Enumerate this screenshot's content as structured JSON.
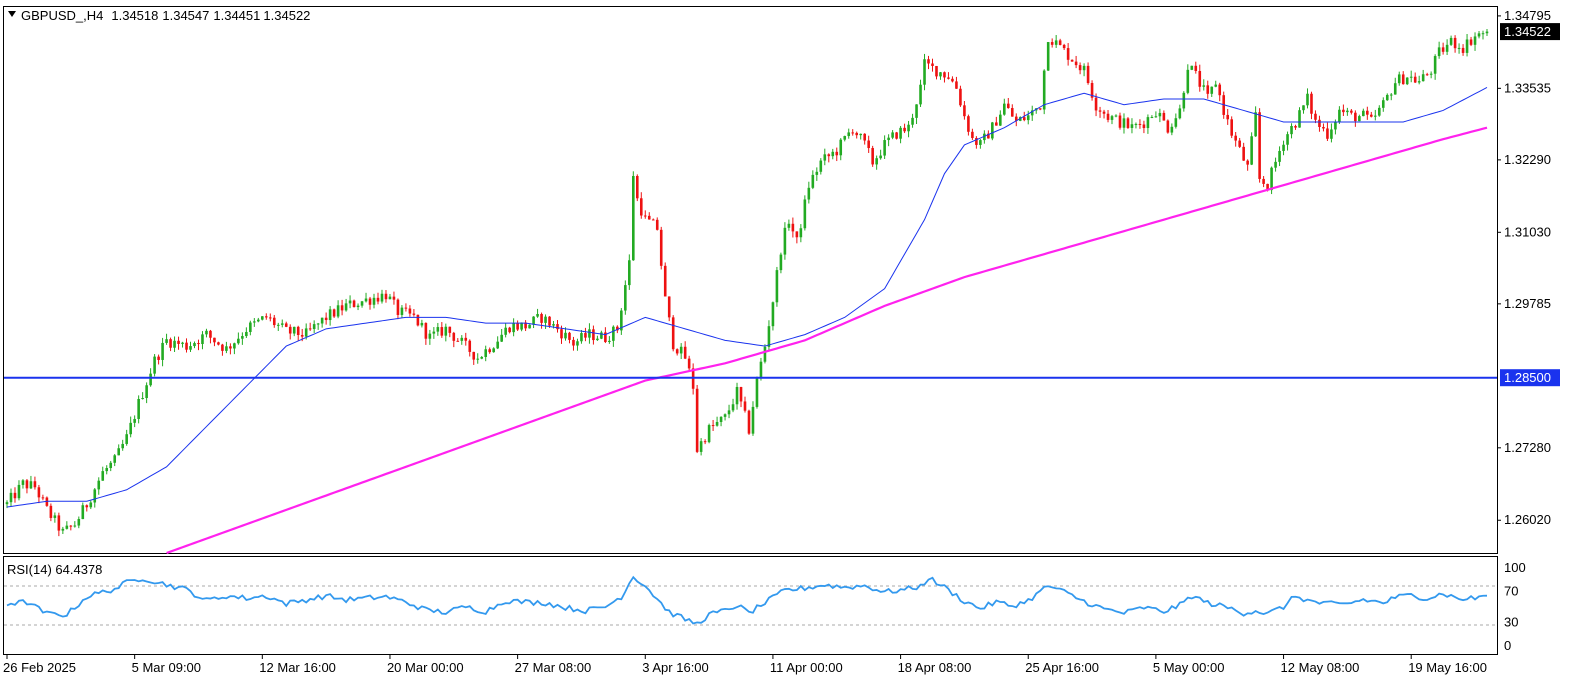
{
  "header": {
    "symbol": "GBPUSD_,H4",
    "open": "1.34518",
    "high": "1.34547",
    "low": "1.34451",
    "close": "1.34522"
  },
  "rsi_header": {
    "label": "RSI(14) 64.4378"
  },
  "current_price_label": "1.34522",
  "hline_label": "1.28500",
  "colors": {
    "bull": "#22aa22",
    "bear": "#ee1111",
    "ma_fast": "#1a33ee",
    "ma_slow": "#ff22ee",
    "hline": "#1a33ee",
    "rsi": "#3399ee",
    "frame": "#000000"
  },
  "chart_data": [
    {
      "type": "candlestick",
      "title": "GBPUSD_,H4",
      "y_ticks": [
        "1.34795",
        "1.33535",
        "1.32290",
        "1.31030",
        "1.29785",
        "1.28500",
        "1.27280",
        "1.26020"
      ],
      "x_ticks": [
        "26 Feb 2025",
        "5 Mar 09:00",
        "12 Mar 16:00",
        "20 Mar 00:00",
        "27 Mar 08:00",
        "3 Apr 16:00",
        "11 Apr 00:00",
        "18 Apr 08:00",
        "25 Apr 16:00",
        "5 May 00:00",
        "12 May 08:00",
        "19 May 16:00"
      ],
      "ylim": [
        1.2545,
        1.3495
      ],
      "horizontal_line": 1.285,
      "last_price": 1.34522,
      "anchors": [
        [
          0,
          1.263
        ],
        [
          4,
          1.2665
        ],
        [
          7,
          1.266
        ],
        [
          10,
          1.262
        ],
        [
          14,
          1.258
        ],
        [
          17,
          1.2595
        ],
        [
          20,
          1.263
        ],
        [
          24,
          1.2685
        ],
        [
          27,
          1.2705
        ],
        [
          30,
          1.2745
        ],
        [
          33,
          1.2805
        ],
        [
          37,
          1.288
        ],
        [
          40,
          1.2915
        ],
        [
          45,
          1.2905
        ],
        [
          50,
          1.2925
        ],
        [
          55,
          1.29
        ],
        [
          60,
          1.2935
        ],
        [
          65,
          1.2955
        ],
        [
          70,
          1.293
        ],
        [
          75,
          1.2925
        ],
        [
          80,
          1.2955
        ],
        [
          85,
          1.2975
        ],
        [
          90,
          1.2985
        ],
        [
          95,
          1.2995
        ],
        [
          98,
          1.2965
        ],
        [
          102,
          1.2955
        ],
        [
          106,
          1.292
        ],
        [
          110,
          1.2935
        ],
        [
          114,
          1.291
        ],
        [
          118,
          1.2885
        ],
        [
          122,
          1.291
        ],
        [
          126,
          1.294
        ],
        [
          130,
          1.294
        ],
        [
          134,
          1.2955
        ],
        [
          138,
          1.2935
        ],
        [
          142,
          1.291
        ],
        [
          146,
          1.2925
        ],
        [
          150,
          1.292
        ],
        [
          153,
          1.2935
        ],
        [
          156,
          1.305
        ],
        [
          157,
          1.3205
        ],
        [
          158,
          1.316
        ],
        [
          160,
          1.3125
        ],
        [
          163,
          1.311
        ],
        [
          165,
          1.2985
        ],
        [
          167,
          1.291
        ],
        [
          170,
          1.2885
        ],
        [
          172,
          1.2835
        ],
        [
          173,
          1.2725
        ],
        [
          176,
          1.276
        ],
        [
          180,
          1.278
        ],
        [
          183,
          1.2825
        ],
        [
          186,
          1.276
        ],
        [
          188,
          1.2845
        ],
        [
          190,
          1.2905
        ],
        [
          192,
          1.2985
        ],
        [
          194,
          1.3075
        ],
        [
          196,
          1.3125
        ],
        [
          198,
          1.3085
        ],
        [
          201,
          1.3185
        ],
        [
          204,
          1.3225
        ],
        [
          208,
          1.3245
        ],
        [
          212,
          1.3285
        ],
        [
          215,
          1.3255
        ],
        [
          217,
          1.3225
        ],
        [
          220,
          1.3255
        ],
        [
          223,
          1.3275
        ],
        [
          226,
          1.3285
        ],
        [
          229,
          1.3355
        ],
        [
          230,
          1.3395
        ],
        [
          233,
          1.3385
        ],
        [
          236,
          1.3375
        ],
        [
          238,
          1.3355
        ],
        [
          240,
          1.3305
        ],
        [
          242,
          1.3265
        ],
        [
          244,
          1.3255
        ],
        [
          247,
          1.3285
        ],
        [
          250,
          1.3325
        ],
        [
          253,
          1.3295
        ],
        [
          256,
          1.3305
        ],
        [
          259,
          1.3325
        ],
        [
          261,
          1.3445
        ],
        [
          264,
          1.3425
        ],
        [
          267,
          1.3405
        ],
        [
          270,
          1.3385
        ],
        [
          273,
          1.3325
        ],
        [
          276,
          1.3305
        ],
        [
          279,
          1.3295
        ],
        [
          282,
          1.3285
        ],
        [
          285,
          1.3295
        ],
        [
          288,
          1.3315
        ],
        [
          291,
          1.3285
        ],
        [
          294,
          1.3315
        ],
        [
          296,
          1.3395
        ],
        [
          298,
          1.3375
        ],
        [
          301,
          1.3335
        ],
        [
          303,
          1.3365
        ],
        [
          305,
          1.3315
        ],
        [
          307,
          1.3275
        ],
        [
          309,
          1.3245
        ],
        [
          311,
          1.3215
        ],
        [
          313,
          1.3305
        ],
        [
          314,
          1.3195
        ],
        [
          316,
          1.3185
        ],
        [
          318,
          1.3225
        ],
        [
          320,
          1.3265
        ],
        [
          323,
          1.3295
        ],
        [
          326,
          1.3335
        ],
        [
          328,
          1.3295
        ],
        [
          331,
          1.3275
        ],
        [
          334,
          1.3315
        ],
        [
          337,
          1.3305
        ],
        [
          340,
          1.3305
        ],
        [
          342,
          1.3295
        ],
        [
          345,
          1.3325
        ],
        [
          348,
          1.3365
        ],
        [
          351,
          1.3375
        ],
        [
          354,
          1.3365
        ],
        [
          357,
          1.3385
        ],
        [
          359,
          1.3415
        ],
        [
          362,
          1.3435
        ],
        [
          365,
          1.3425
        ],
        [
          368,
          1.3445
        ],
        [
          371,
          1.34522
        ]
      ],
      "ma_fast_anchors": [
        [
          0,
          1.2625
        ],
        [
          10,
          1.2635
        ],
        [
          20,
          1.2635
        ],
        [
          30,
          1.2655
        ],
        [
          40,
          1.2695
        ],
        [
          50,
          1.2765
        ],
        [
          60,
          1.2835
        ],
        [
          70,
          1.2905
        ],
        [
          80,
          1.2935
        ],
        [
          90,
          1.2945
        ],
        [
          100,
          1.2955
        ],
        [
          110,
          1.2955
        ],
        [
          120,
          1.2945
        ],
        [
          130,
          1.2945
        ],
        [
          140,
          1.2935
        ],
        [
          150,
          1.2925
        ],
        [
          160,
          1.2955
        ],
        [
          170,
          1.2935
        ],
        [
          180,
          1.2915
        ],
        [
          190,
          1.2905
        ],
        [
          200,
          1.2925
        ],
        [
          210,
          1.2955
        ],
        [
          220,
          1.3005
        ],
        [
          230,
          1.3125
        ],
        [
          235,
          1.3205
        ],
        [
          240,
          1.3255
        ],
        [
          250,
          1.3285
        ],
        [
          260,
          1.3325
        ],
        [
          270,
          1.3345
        ],
        [
          280,
          1.3325
        ],
        [
          290,
          1.3335
        ],
        [
          300,
          1.3335
        ],
        [
          310,
          1.3315
        ],
        [
          320,
          1.3295
        ],
        [
          330,
          1.3295
        ],
        [
          340,
          1.3295
        ],
        [
          350,
          1.3295
        ],
        [
          360,
          1.3315
        ],
        [
          371,
          1.3355
        ]
      ],
      "ma_slow_anchors": [
        [
          40,
          1.2545
        ],
        [
          60,
          1.2595
        ],
        [
          80,
          1.2645
        ],
        [
          100,
          1.2695
        ],
        [
          120,
          1.2745
        ],
        [
          140,
          1.2795
        ],
        [
          160,
          1.2845
        ],
        [
          180,
          1.2875
        ],
        [
          200,
          1.2915
        ],
        [
          220,
          1.2975
        ],
        [
          240,
          1.3025
        ],
        [
          260,
          1.3065
        ],
        [
          280,
          1.3105
        ],
        [
          300,
          1.3145
        ],
        [
          320,
          1.3185
        ],
        [
          340,
          1.3225
        ],
        [
          360,
          1.3265
        ],
        [
          371,
          1.3285
        ]
      ]
    },
    {
      "type": "line",
      "title": "RSI(14) 64.4378",
      "y_ticks": [
        "100",
        "70",
        "30",
        "0"
      ],
      "levels": [
        70,
        30
      ],
      "ylim": [
        0,
        100
      ],
      "anchors": [
        [
          0,
          53
        ],
        [
          5,
          55
        ],
        [
          10,
          40
        ],
        [
          15,
          39
        ],
        [
          20,
          62
        ],
        [
          27,
          72
        ],
        [
          30,
          80
        ],
        [
          34,
          86
        ],
        [
          38,
          80
        ],
        [
          45,
          71
        ],
        [
          50,
          57
        ],
        [
          55,
          63
        ],
        [
          60,
          60
        ],
        [
          65,
          63
        ],
        [
          70,
          53
        ],
        [
          75,
          58
        ],
        [
          80,
          63
        ],
        [
          85,
          58
        ],
        [
          90,
          60
        ],
        [
          95,
          62
        ],
        [
          100,
          55
        ],
        [
          105,
          45
        ],
        [
          110,
          42
        ],
        [
          115,
          49
        ],
        [
          120,
          43
        ],
        [
          125,
          57
        ],
        [
          130,
          55
        ],
        [
          135,
          54
        ],
        [
          140,
          48
        ],
        [
          145,
          44
        ],
        [
          150,
          49
        ],
        [
          154,
          62
        ],
        [
          157,
          88
        ],
        [
          160,
          76
        ],
        [
          163,
          59
        ],
        [
          166,
          42
        ],
        [
          170,
          33
        ],
        [
          173,
          27
        ],
        [
          176,
          39
        ],
        [
          180,
          44
        ],
        [
          183,
          51
        ],
        [
          186,
          41
        ],
        [
          190,
          54
        ],
        [
          195,
          70
        ],
        [
          200,
          73
        ],
        [
          205,
          77
        ],
        [
          210,
          74
        ],
        [
          215,
          76
        ],
        [
          220,
          68
        ],
        [
          225,
          71
        ],
        [
          229,
          75
        ],
        [
          231,
          86
        ],
        [
          235,
          74
        ],
        [
          240,
          56
        ],
        [
          244,
          47
        ],
        [
          248,
          55
        ],
        [
          252,
          50
        ],
        [
          256,
          57
        ],
        [
          261,
          76
        ],
        [
          265,
          68
        ],
        [
          270,
          56
        ],
        [
          275,
          46
        ],
        [
          280,
          41
        ],
        [
          285,
          48
        ],
        [
          290,
          43
        ],
        [
          294,
          51
        ],
        [
          297,
          63
        ],
        [
          301,
          54
        ],
        [
          306,
          48
        ],
        [
          310,
          41
        ],
        [
          313,
          44
        ],
        [
          316,
          40
        ],
        [
          320,
          49
        ],
        [
          323,
          63
        ],
        [
          326,
          57
        ],
        [
          330,
          53
        ],
        [
          335,
          52
        ],
        [
          340,
          58
        ],
        [
          345,
          54
        ],
        [
          348,
          61
        ],
        [
          352,
          64
        ],
        [
          356,
          60
        ],
        [
          360,
          66
        ],
        [
          364,
          59
        ],
        [
          368,
          60
        ],
        [
          371,
          64.4
        ]
      ]
    }
  ]
}
